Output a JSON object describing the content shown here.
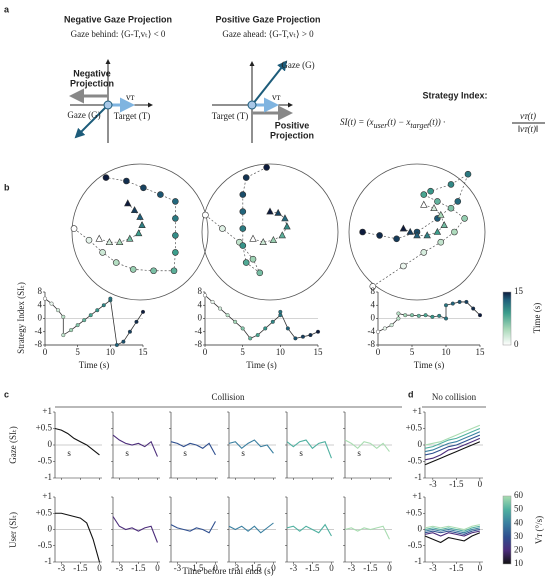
{
  "panel_a": {
    "label": "a",
    "negative": {
      "title": "Negative Gaze Projection",
      "subtitle": "Gaze behind: ⟨G-T,vₜ⟩ < 0",
      "projection": [
        "Negative",
        "Projection"
      ],
      "gaze": "Gaze (G)",
      "target": "Target (T)",
      "velocity": "vᴛ"
    },
    "positive": {
      "title": "Positive Gaze Projection",
      "subtitle": "Gaze ahead: ⟨G-T,vₜ⟩ > 0",
      "projection": [
        "Positive",
        "Projection"
      ],
      "gaze": "Gaze (G)",
      "target": "Target (T)",
      "velocity": "vᴛ"
    },
    "strategy": {
      "title": "Strategy Index:",
      "left": "SI(t) = (x",
      "sub1": "user",
      "mid": "(t) − x",
      "sub2": "target",
      "right": "(t)) ·",
      "num": "vᴛ(t)",
      "den": "‖vᴛ(t)‖"
    }
  },
  "panel_b": {
    "label": "b",
    "trajectories": [
      {
        "user": [
          [
            -0.97,
            -0.05
          ],
          [
            -0.75,
            0.12
          ],
          [
            -0.55,
            0.3
          ],
          [
            -0.35,
            0.45
          ],
          [
            -0.1,
            0.55
          ],
          [
            0.2,
            0.57
          ],
          [
            0.5,
            0.57
          ],
          [
            0.52,
            0.3
          ],
          [
            0.52,
            0.05
          ],
          [
            0.52,
            -0.2
          ],
          [
            0.52,
            -0.45
          ],
          [
            0.3,
            -0.55
          ],
          [
            0.05,
            -0.65
          ],
          [
            -0.2,
            -0.75
          ],
          [
            -0.5,
            -0.8
          ]
        ],
        "target": [
          [
            -0.6,
            0.1
          ],
          [
            -0.45,
            0.15
          ],
          [
            -0.3,
            0.15
          ],
          [
            -0.15,
            0.1
          ],
          [
            -0.02,
            0.02
          ],
          [
            0.03,
            -0.1
          ],
          [
            0,
            -0.22
          ],
          [
            -0.08,
            -0.32
          ],
          [
            -0.18,
            -0.42
          ]
        ]
      },
      {
        "user": [
          [
            -0.95,
            -0.25
          ],
          [
            -0.7,
            -0.05
          ],
          [
            -0.45,
            0.15
          ],
          [
            -0.25,
            0.4
          ],
          [
            -0.15,
            0.6
          ],
          [
            -0.35,
            0.45
          ],
          [
            -0.4,
            0.2
          ],
          [
            -0.4,
            -0.05
          ],
          [
            -0.4,
            -0.3
          ],
          [
            -0.4,
            -0.55
          ],
          [
            -0.35,
            -0.8
          ],
          [
            -0.05,
            -0.95
          ]
        ],
        "target": [
          [
            -0.25,
            0.1
          ],
          [
            -0.1,
            0.15
          ],
          [
            0.05,
            0.12
          ],
          [
            0.18,
            0.05
          ],
          [
            0.25,
            -0.08
          ],
          [
            0.22,
            -0.2
          ],
          [
            0.12,
            -0.28
          ],
          [
            0,
            -0.3
          ]
        ]
      },
      {
        "user": [
          [
            -0.65,
            0.8
          ],
          [
            -0.2,
            0.5
          ],
          [
            0.1,
            0.3
          ],
          [
            0.35,
            0.15
          ],
          [
            0.55,
            0
          ],
          [
            0.7,
            -0.2
          ],
          [
            0.5,
            -0.35
          ],
          [
            0.3,
            -0.45
          ],
          [
            0.1,
            -0.55
          ],
          [
            0.2,
            -0.6
          ],
          [
            0.5,
            -0.7
          ],
          [
            0.75,
            -0.85
          ],
          [
            0.6,
            -0.45
          ],
          [
            0.3,
            -0.2
          ],
          [
            0,
            0
          ],
          [
            -0.3,
            0.1
          ],
          [
            -0.55,
            0.05
          ],
          [
            -0.8,
            0.0
          ]
        ],
        "target": [
          [
            0.1,
            -0.4
          ],
          [
            0.25,
            -0.35
          ],
          [
            0.35,
            -0.25
          ],
          [
            0.4,
            -0.1
          ],
          [
            0.3,
            0
          ],
          [
            0.15,
            0.05
          ],
          [
            0,
            0.05
          ],
          [
            -0.1,
            0.0
          ],
          [
            -0.2,
            -0.05
          ]
        ]
      }
    ],
    "ylabel": "Strategy Index (SIₜ)",
    "xlabel": "Time (s)",
    "xlim": [
      0,
      15
    ],
    "xticks": [
      0,
      5,
      10,
      15
    ],
    "ylim": [
      -8,
      8
    ],
    "yticks": [
      8,
      4,
      0,
      -4,
      -8
    ],
    "plots": [
      {
        "x": [
          0,
          1,
          2,
          2.8,
          2.8,
          4,
          5,
          6,
          7,
          8,
          9,
          10,
          10,
          11,
          12,
          13,
          14,
          15
        ],
        "values": [
          6,
          4.5,
          2.5,
          0.5,
          -5,
          -3.5,
          -2,
          -0.5,
          1,
          2.5,
          4,
          5.5,
          6,
          -8,
          -7,
          -4,
          -1,
          2
        ]
      },
      {
        "x": [
          0,
          1,
          2,
          3,
          4,
          5,
          6,
          7,
          8,
          9,
          10,
          10,
          11,
          12,
          13,
          14,
          15
        ],
        "values": [
          7,
          5,
          3,
          1,
          -1,
          -3,
          -6,
          -5,
          -3,
          -1,
          1,
          2,
          -3,
          -6,
          -5.5,
          -5,
          -4
        ]
      },
      {
        "x": [
          0,
          1,
          2,
          3,
          3,
          4,
          5,
          6,
          7,
          8,
          9,
          10,
          10,
          11,
          12,
          13,
          14,
          15
        ],
        "values": [
          -4,
          -3,
          -2,
          0,
          1.5,
          1,
          1,
          0.8,
          1,
          0.5,
          0.8,
          0,
          4,
          4.5,
          5,
          5,
          3,
          1
        ]
      }
    ],
    "colorbar": {
      "label": "Time (s)",
      "ticks": [
        0,
        15
      ]
    }
  },
  "collision": {
    "label": "c",
    "title": "Collision",
    "row_labels": [
      "Gaze (SIₜ)",
      "User (SIₜ)"
    ],
    "xlabel": "Time before trial ends (s)",
    "annotation": "s",
    "xlim": [
      -3.5,
      0.2
    ],
    "xticks": [
      -3,
      -1.5,
      0
    ],
    "ylim": [
      -1,
      1
    ],
    "yticks": [
      {
        "value": 1,
        "label": "+1"
      },
      {
        "value": 0.5,
        "label": "+0.5"
      },
      0,
      -0.5,
      -1
    ],
    "x": [
      -3.5,
      -3,
      -2.5,
      -2,
      -1.5,
      -1,
      -0.5,
      0
    ],
    "series": [
      {
        "color": "#111111",
        "gaze": [
          0.5,
          0.45,
          0.35,
          0.2,
          0.1,
          0,
          -0.15,
          -0.3
        ],
        "user": [
          0.5,
          0.5,
          0.45,
          0.4,
          0.35,
          0.2,
          -0.3,
          -1
        ]
      },
      {
        "color": "#4b2c7a",
        "gaze": [
          0.3,
          0.15,
          0.05,
          0,
          0.05,
          -0.05,
          0.1,
          -0.35
        ],
        "user": [
          0.4,
          0.1,
          0,
          0.05,
          -0.05,
          0.05,
          0.1,
          -0.4
        ]
      },
      {
        "color": "#2f4f8f",
        "gaze": [
          0.1,
          0.05,
          -0.05,
          0.05,
          0,
          -0.1,
          0.05,
          -0.3
        ],
        "user": [
          0.15,
          0.05,
          0,
          -0.05,
          0.05,
          0,
          -0.1,
          0.25
        ]
      },
      {
        "color": "#3a7fa0",
        "gaze": [
          0.05,
          0.1,
          -0.1,
          0.05,
          0.15,
          -0.05,
          0,
          -0.25
        ],
        "user": [
          0.1,
          0,
          0.1,
          -0.05,
          0.1,
          -0.1,
          0.05,
          0.2
        ]
      },
      {
        "color": "#4fb0a0",
        "gaze": [
          0.1,
          -0.05,
          0.1,
          0.15,
          -0.1,
          0.05,
          0.1,
          -0.4
        ],
        "user": [
          0.05,
          0.1,
          -0.05,
          0.1,
          0,
          -0.1,
          0.15,
          -0.2
        ]
      },
      {
        "color": "#a8dcb0",
        "gaze": [
          0.15,
          0.05,
          -0.1,
          0.1,
          0.05,
          -0.1,
          0.05,
          -0.2
        ],
        "user": [
          0,
          0.05,
          -0.05,
          0.05,
          0,
          0.05,
          0.1,
          -0.3
        ]
      }
    ]
  },
  "no_collision": {
    "label": "d",
    "title": "No collision",
    "series": [
      {
        "color": "#a8dcb0",
        "gaze": [
          0,
          0.05,
          0.1,
          0.2,
          0.3,
          0.4,
          0.5,
          0.6
        ],
        "user": [
          0.05,
          0.1,
          0.05,
          0.1,
          0.05,
          0,
          0.1,
          0.15
        ]
      },
      {
        "color": "#4fb0a0",
        "gaze": [
          -0.1,
          -0.05,
          0.05,
          0.15,
          0.2,
          0.3,
          0.4,
          0.5
        ],
        "user": [
          0,
          0.05,
          0,
          0.05,
          0,
          -0.05,
          0.05,
          0.1
        ]
      },
      {
        "color": "#3a7fa0",
        "gaze": [
          -0.2,
          -0.15,
          -0.05,
          0.05,
          0.1,
          0.2,
          0.3,
          0.4
        ],
        "user": [
          -0.05,
          0,
          -0.05,
          0,
          -0.05,
          -0.1,
          0,
          0.05
        ]
      },
      {
        "color": "#2f4f8f",
        "gaze": [
          -0.3,
          -0.25,
          -0.15,
          -0.05,
          0,
          0.1,
          0.2,
          0.3
        ],
        "user": [
          -0.1,
          -0.05,
          -0.1,
          -0.05,
          -0.1,
          -0.15,
          -0.05,
          0
        ]
      },
      {
        "color": "#4b2c7a",
        "gaze": [
          -0.45,
          -0.4,
          -0.3,
          -0.15,
          -0.1,
          0,
          0.1,
          0.2
        ],
        "user": [
          -0.15,
          -0.1,
          -0.2,
          -0.1,
          -0.15,
          -0.2,
          -0.1,
          -0.05
        ]
      },
      {
        "color": "#111111",
        "gaze": [
          -0.6,
          -0.5,
          -0.4,
          -0.3,
          -0.2,
          -0.1,
          0,
          0.1
        ],
        "user": [
          -0.2,
          -0.3,
          -0.4,
          -0.25,
          -0.3,
          -0.35,
          -0.2,
          -0.1
        ]
      }
    ],
    "colorbar": {
      "label": "Vᴛ (°/s)",
      "ticks": [
        10,
        20,
        30,
        40,
        50,
        60
      ]
    }
  }
}
